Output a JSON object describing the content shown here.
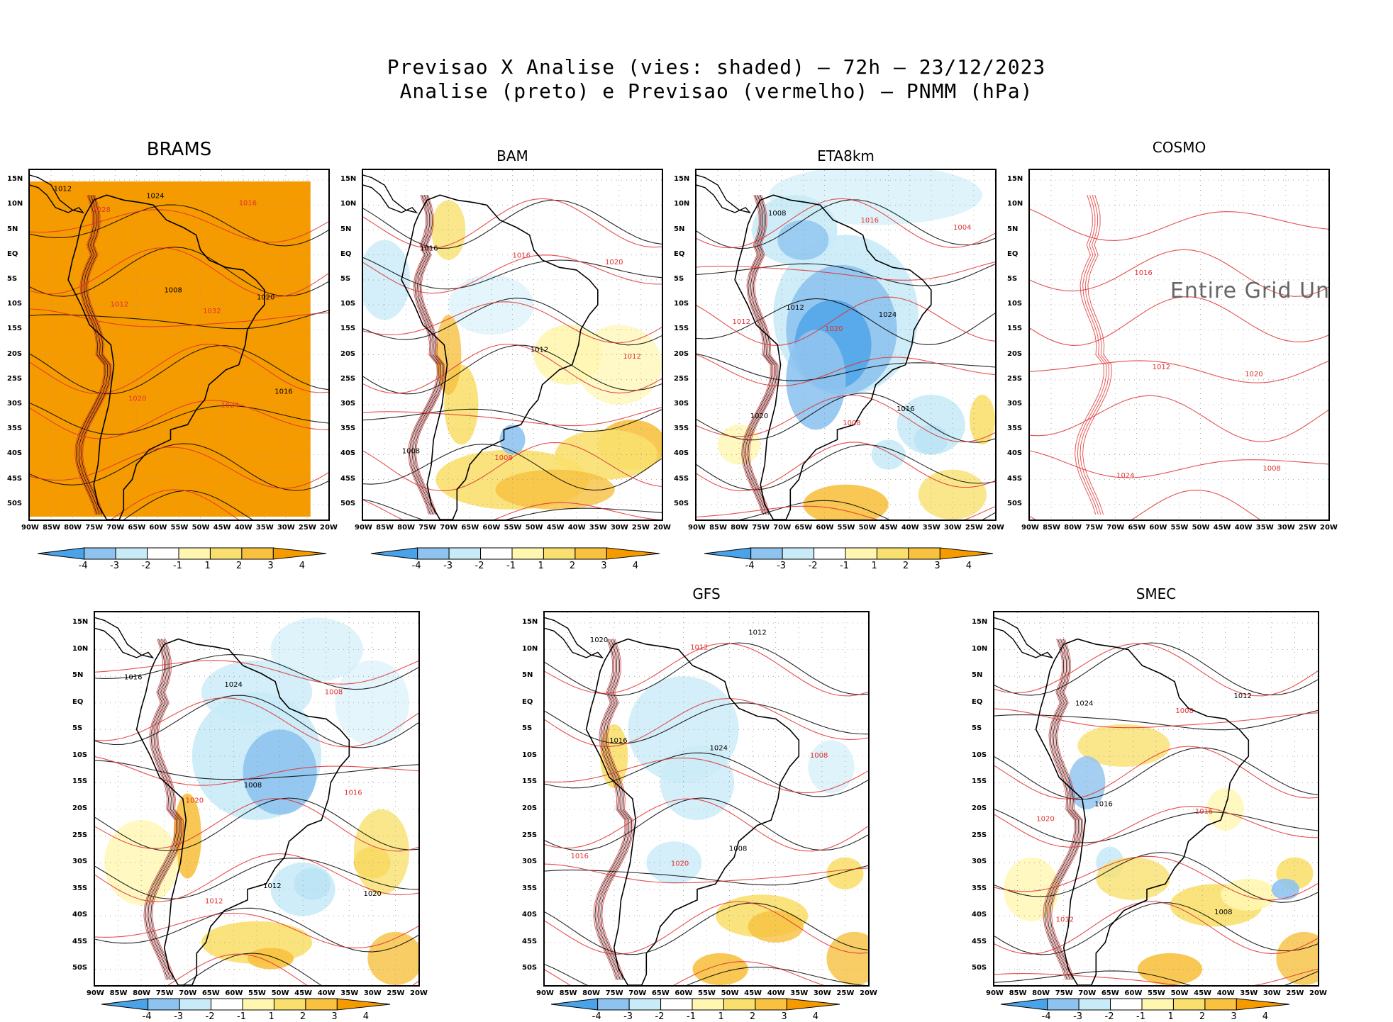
{
  "header": {
    "line1": "Previsao X Analise (vies: shaded) — 72h — 23/12/2023",
    "line2": "Analise (preto) e Previsao (vermelho) — PNMM (hPa)"
  },
  "colors": {
    "neg4": "#4aa3e8",
    "neg3": "#8fc3ef",
    "neg2": "#c9ebf7",
    "neg1": "#ffffff",
    "pos1": "#fff6b0",
    "pos2": "#f9e06e",
    "pos3": "#f8c140",
    "pos4": "#f59b00",
    "analysis": "#000000",
    "forecast": "#e03030"
  },
  "axes": {
    "lat_ticks": [
      "15N",
      "10N",
      "5N",
      "EQ",
      "5S",
      "10S",
      "15S",
      "20S",
      "25S",
      "30S",
      "35S",
      "40S",
      "45S",
      "50S"
    ],
    "lon_ticks": [
      "90W",
      "85W",
      "80W",
      "75W",
      "70W",
      "65W",
      "60W",
      "55W",
      "50W",
      "45W",
      "40W",
      "35W",
      "30W",
      "25W",
      "20W"
    ]
  },
  "colorbar": {
    "labels": [
      "-4",
      "-3",
      "-2",
      "-1",
      "1",
      "2",
      "3",
      "4"
    ]
  },
  "chart_data": [
    {
      "type": "heatmap",
      "title": "BRAMS",
      "bias": "strong-positive",
      "isobars_black": [
        "1012",
        "1008",
        "1016",
        "1024",
        "1020"
      ],
      "isobars_red": [
        "1020",
        "1016",
        "1012",
        "1024",
        "1028",
        "1032"
      ]
    },
    {
      "type": "heatmap",
      "title": "BAM",
      "bias": "mixed",
      "isobars_black": [
        "1016",
        "1012",
        "1008"
      ],
      "isobars_red": [
        "1016",
        "1012",
        "1008",
        "1020"
      ]
    },
    {
      "type": "heatmap",
      "title": "ETA8km",
      "bias": "negative-continent",
      "isobars_black": [
        "1012",
        "1016",
        "1008",
        "1024",
        "1020"
      ],
      "isobars_red": [
        "1016",
        "1012",
        "1008",
        "1004",
        "1020"
      ]
    },
    {
      "type": "heatmap",
      "title": "COSMO",
      "bias": "undefined",
      "note": "Entire Grid Und",
      "isobars_red": [
        "1012",
        "1008",
        "1016",
        "1020",
        "1024"
      ]
    },
    {
      "type": "heatmap",
      "title": "",
      "bias": "negative-north",
      "isobars_black": [
        "1012",
        "1016",
        "1008",
        "1020",
        "1024"
      ],
      "isobars_red": [
        "1016",
        "1012",
        "1008",
        "1020"
      ]
    },
    {
      "type": "heatmap",
      "title": "GFS",
      "bias": "slight-positive-south",
      "isobars_black": [
        "1012",
        "1016",
        "1008",
        "1020",
        "1024"
      ],
      "isobars_red": [
        "1016",
        "1012",
        "1008",
        "1020"
      ]
    },
    {
      "type": "heatmap",
      "title": "SMEC",
      "bias": "slight-positive-south",
      "isobars_black": [
        "1012",
        "1016",
        "1008",
        "1024"
      ],
      "isobars_red": [
        "1016",
        "1012",
        "1008",
        "1020"
      ]
    }
  ]
}
